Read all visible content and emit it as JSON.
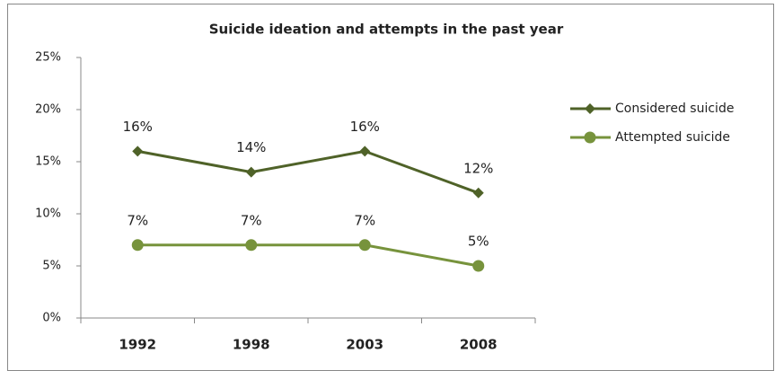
{
  "chart_data": {
    "type": "line",
    "title": "Suicide ideation and attempts in the past year",
    "categories": [
      "1992",
      "1998",
      "2003",
      "2008"
    ],
    "series": [
      {
        "name": "Considered suicide",
        "color": "#4f6228",
        "marker": "diamond",
        "values": [
          16,
          14,
          16,
          12
        ],
        "value_labels": [
          "16%",
          "14%",
          "16%",
          "12%"
        ]
      },
      {
        "name": "Attempted suicide",
        "color": "#77933c",
        "marker": "circle",
        "values": [
          7,
          7,
          7,
          5
        ],
        "value_labels": [
          "7%",
          "7%",
          "7%",
          "5%"
        ]
      }
    ],
    "ylim": [
      0,
      25
    ],
    "yticks": [
      {
        "value": 0,
        "label": "0%"
      },
      {
        "value": 5,
        "label": "5%"
      },
      {
        "value": 10,
        "label": "10%"
      },
      {
        "value": 15,
        "label": "15%"
      },
      {
        "value": 20,
        "label": "20%"
      },
      {
        "value": 25,
        "label": "25%"
      }
    ],
    "grid": false,
    "legend": "right"
  }
}
